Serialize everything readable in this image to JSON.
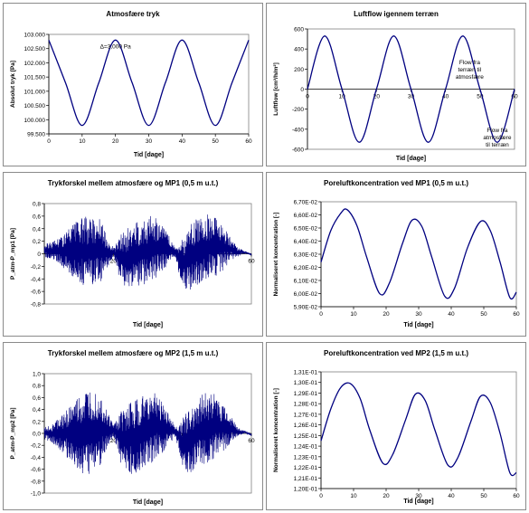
{
  "chart_data": [
    {
      "id": "p1",
      "type": "line",
      "title": "Atmosfære tryk",
      "xlabel": "Tid [dage]",
      "ylabel": "Absolut tryk [Pa]",
      "xlim": [
        0,
        60
      ],
      "ylim": [
        99500,
        103000
      ],
      "xticks": [
        0,
        10,
        20,
        30,
        40,
        50,
        60
      ],
      "xtick_labels": [
        "0",
        "10",
        "20",
        "30",
        "40",
        "50",
        "60"
      ],
      "yticks": [
        99500,
        100000,
        100500,
        101000,
        101500,
        102000,
        102500,
        103000
      ],
      "ytick_labels": [
        "99.500",
        "100.000",
        "100.500",
        "101.000",
        "101.500",
        "102.000",
        "102.500",
        "103.000"
      ],
      "annotations": [
        {
          "text": "Δ=3,000 Pa",
          "x": 20,
          "y": 102500
        }
      ],
      "x": [
        0,
        5,
        10,
        15,
        20,
        25,
        30,
        35,
        40,
        45,
        50,
        55,
        60
      ],
      "y": [
        102800,
        101300,
        99800,
        101300,
        102800,
        101300,
        99800,
        101300,
        102800,
        101300,
        99800,
        101300,
        102800
      ],
      "color": "#000080"
    },
    {
      "id": "p2",
      "type": "line",
      "title": "Luftflow igennem terræn",
      "xlabel": "Tid [dage]",
      "ylabel": "Luftflow [cm³/h/m²]",
      "xlim": [
        0,
        60
      ],
      "ylim": [
        -600,
        600
      ],
      "x_axis_at": 0,
      "xticks": [
        0,
        10,
        20,
        30,
        40,
        50,
        60
      ],
      "xtick_labels": [
        "0",
        "10",
        "20",
        "30",
        "40",
        "50",
        "60"
      ],
      "yticks": [
        -600,
        -400,
        -200,
        0,
        200,
        400,
        600
      ],
      "ytick_labels": [
        "-600",
        "-400",
        "-200",
        "0",
        "200",
        "400",
        "600"
      ],
      "annotations": [
        {
          "text": "Flow fra\nterræn til\natmosfære",
          "x": 47,
          "y": 250
        },
        {
          "text": "Flow fra\natmosfære\ntil terræn",
          "x": 55,
          "y": -430
        }
      ],
      "x": [
        0,
        5,
        10,
        15,
        20,
        25,
        30,
        35,
        40,
        45,
        50,
        55,
        60
      ],
      "y": [
        0,
        530,
        0,
        -530,
        0,
        530,
        0,
        -530,
        0,
        530,
        0,
        -530,
        0
      ],
      "color": "#000080"
    },
    {
      "id": "p3",
      "type": "line",
      "title": "Trykforskel mellem atmosfære og MP1 (0,5 m u.t.)",
      "xlabel": "Tid [dage]",
      "ylabel": "P_atm-P_mp1 [Pa]",
      "xlim": [
        0,
        60
      ],
      "ylim": [
        -0.8,
        0.8
      ],
      "x_axis_at": 0,
      "xticks": [
        20,
        40,
        60
      ],
      "xtick_labels": [
        "20",
        "40",
        "60"
      ],
      "yticks": [
        -0.8,
        -0.6,
        -0.4,
        -0.2,
        0,
        0.2,
        0.4,
        0.6,
        0.8
      ],
      "ytick_labels": [
        "-0,8",
        "-0,6",
        "-0,4",
        "-0,2",
        "0",
        "0,2",
        "0,4",
        "0,6",
        "0,8"
      ],
      "envelope": {
        "x": [
          0,
          2,
          5,
          8,
          10,
          12,
          14,
          16,
          18,
          20,
          22,
          24,
          27,
          30,
          32,
          34,
          36,
          38,
          40,
          42,
          44,
          47,
          50,
          52,
          54,
          56,
          58,
          60
        ],
        "upper": [
          0.15,
          0.2,
          0.3,
          0.45,
          0.55,
          0.6,
          0.6,
          0.6,
          0.3,
          0.1,
          0.3,
          0.4,
          0.55,
          0.6,
          0.6,
          0.5,
          0.3,
          0.1,
          0.25,
          0.45,
          0.55,
          0.65,
          0.6,
          0.45,
          0.25,
          0.1,
          0.05,
          0.0
        ],
        "lower": [
          -0.05,
          -0.1,
          -0.2,
          -0.35,
          -0.45,
          -0.55,
          -0.5,
          -0.5,
          -0.25,
          -0.05,
          -0.45,
          -0.6,
          -0.55,
          -0.5,
          -0.4,
          -0.3,
          -0.15,
          -0.05,
          -0.55,
          -0.6,
          -0.5,
          -0.45,
          -0.35,
          -0.25,
          -0.1,
          -0.05,
          0.0,
          -0.02
        ]
      },
      "color": "#000080"
    },
    {
      "id": "p4",
      "type": "line",
      "title": "Poreluftkoncentration ved MP1 (0,5 m u.t.)",
      "xlabel": "Tid [dage]",
      "ylabel": "Normaliseret koncentration [-]",
      "xlim": [
        0,
        60
      ],
      "ylim": [
        0.059,
        0.067
      ],
      "xticks": [
        0,
        10,
        20,
        30,
        40,
        50,
        60
      ],
      "xtick_labels": [
        "0",
        "10",
        "20",
        "30",
        "40",
        "50",
        "60"
      ],
      "yticks": [
        0.059,
        0.06,
        0.061,
        0.062,
        0.063,
        0.064,
        0.065,
        0.066,
        0.067
      ],
      "ytick_labels": [
        "5,90E-02",
        "6,00E-02",
        "6,10E-02",
        "6,20E-02",
        "6,30E-02",
        "6,40E-02",
        "6,50E-02",
        "6,60E-02",
        "6,70E-02"
      ],
      "x": [
        0,
        3,
        6,
        8,
        11,
        14,
        18,
        21,
        25,
        28,
        31,
        34,
        38,
        41,
        45,
        49,
        52,
        55,
        58,
        60
      ],
      "y": [
        0.0624,
        0.0648,
        0.0661,
        0.0664,
        0.0652,
        0.0628,
        0.06,
        0.0608,
        0.0638,
        0.0656,
        0.0651,
        0.0628,
        0.0598,
        0.0604,
        0.0635,
        0.0655,
        0.0648,
        0.0624,
        0.0597,
        0.0601
      ],
      "color": "#000080"
    },
    {
      "id": "p5",
      "type": "line",
      "title": "Trykforskel mellem atmosfære og MP2 (1,5 m u.t.)",
      "xlabel": "Tid [dage]",
      "ylabel": "P_atm-P_mp2 [Pa]",
      "xlim": [
        0,
        60
      ],
      "ylim": [
        -1.0,
        1.0
      ],
      "x_axis_at": 0,
      "xticks": [
        20,
        40,
        60
      ],
      "xtick_labels": [
        "20",
        "40",
        "60"
      ],
      "yticks": [
        -1.0,
        -0.8,
        -0.6,
        -0.4,
        -0.2,
        0,
        0.2,
        0.4,
        0.6,
        0.8,
        1.0
      ],
      "ytick_labels": [
        "-1,0",
        "-0,8",
        "-0,6",
        "-0,4",
        "-0,2",
        "0,0",
        "0,2",
        "0,4",
        "0,6",
        "0,8",
        "1,0"
      ],
      "envelope": {
        "x": [
          0,
          2,
          5,
          8,
          10,
          12,
          14,
          16,
          18,
          20,
          22,
          24,
          27,
          30,
          32,
          34,
          36,
          38,
          40,
          42,
          44,
          47,
          50,
          52,
          54,
          56,
          58,
          60
        ],
        "upper": [
          0.1,
          0.15,
          0.3,
          0.5,
          0.6,
          0.7,
          0.75,
          0.7,
          0.4,
          0.15,
          0.35,
          0.5,
          0.6,
          0.65,
          0.7,
          0.55,
          0.35,
          0.1,
          0.25,
          0.45,
          0.6,
          0.7,
          0.65,
          0.5,
          0.3,
          0.1,
          0.05,
          0.0
        ],
        "lower": [
          -0.1,
          -0.15,
          -0.3,
          -0.5,
          -0.65,
          -0.75,
          -0.65,
          -0.55,
          -0.3,
          -0.05,
          -0.5,
          -0.7,
          -0.65,
          -0.55,
          -0.45,
          -0.35,
          -0.2,
          -0.05,
          -0.55,
          -0.7,
          -0.6,
          -0.5,
          -0.4,
          -0.3,
          -0.15,
          -0.05,
          0.0,
          -0.05
        ]
      },
      "color": "#000080"
    },
    {
      "id": "p6",
      "type": "line",
      "title": "Poreluftkoncentration ved MP2 (1,5 m u.t.)",
      "xlabel": "Tid [dage]",
      "ylabel": "Normaliseret koncentration [-]",
      "xlim": [
        0,
        60
      ],
      "ylim": [
        0.12,
        0.131
      ],
      "xticks": [
        0,
        10,
        20,
        30,
        40,
        50,
        60
      ],
      "xtick_labels": [
        "0",
        "10",
        "20",
        "30",
        "40",
        "50",
        "60"
      ],
      "yticks": [
        0.12,
        0.121,
        0.122,
        0.123,
        0.124,
        0.125,
        0.126,
        0.127,
        0.128,
        0.129,
        0.13,
        0.131
      ],
      "ytick_labels": [
        "1,20E-01",
        "1,21E-01",
        "1,22E-01",
        "1,23E-01",
        "1,24E-01",
        "1,25E-01",
        "1,26E-01",
        "1,27E-01",
        "1,28E-01",
        "1,29E-01",
        "1,30E-01",
        "1,31E-01"
      ],
      "x": [
        0,
        3,
        6,
        9,
        12,
        15,
        19,
        22,
        26,
        29,
        32,
        35,
        39,
        42,
        46,
        49,
        52,
        55,
        58,
        60
      ],
      "y": [
        0.1245,
        0.1275,
        0.1295,
        0.1299,
        0.1285,
        0.1255,
        0.1224,
        0.1232,
        0.1265,
        0.1289,
        0.1283,
        0.1255,
        0.1222,
        0.1229,
        0.1263,
        0.1287,
        0.1281,
        0.1252,
        0.1215,
        0.1215
      ],
      "color": "#000080"
    }
  ]
}
